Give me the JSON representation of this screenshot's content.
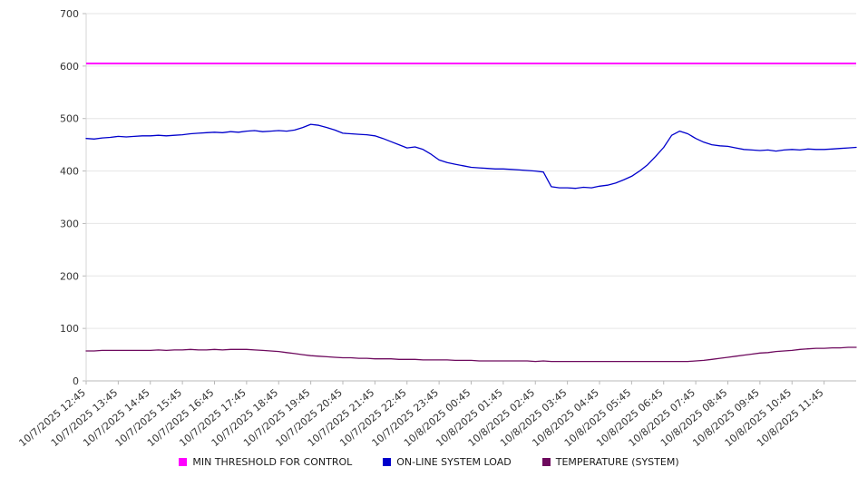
{
  "chart_data": {
    "type": "line",
    "title": "",
    "xlabel": "",
    "ylabel": "",
    "ylim": [
      0,
      700
    ],
    "yticks": [
      0,
      100,
      200,
      300,
      400,
      500,
      600,
      700
    ],
    "grid": true,
    "legend_position": "bottom",
    "background_color": "#ffffff",
    "gridline_color": "#e6e6e6",
    "axis_color": "#b8b8b8",
    "points_per_label": 4,
    "x_labels": [
      "10/7/2025 12:45",
      "10/7/2025 13:45",
      "10/7/2025 14:45",
      "10/7/2025 15:45",
      "10/7/2025 16:45",
      "10/7/2025 17:45",
      "10/7/2025 18:45",
      "10/7/2025 19:45",
      "10/7/2025 20:45",
      "10/7/2025 21:45",
      "10/7/2025 22:45",
      "10/7/2025 23:45",
      "10/8/2025 00:45",
      "10/8/2025 01:45",
      "10/8/2025 02:45",
      "10/8/2025 03:45",
      "10/8/2025 04:45",
      "10/8/2025 05:45",
      "10/8/2025 06:45",
      "10/8/2025 07:45",
      "10/8/2025 08:45",
      "10/8/2025 09:45",
      "10/8/2025 10:45",
      "10/8/2025 11:45"
    ],
    "series": [
      {
        "name": "MIN THRESHOLD FOR CONTROL",
        "color": "#ff00ff",
        "constant": 605
      },
      {
        "name": "ON-LINE SYSTEM LOAD",
        "color": "#0000cc",
        "values": [
          462,
          461,
          463,
          464,
          466,
          465,
          466,
          467,
          467,
          468,
          467,
          468,
          469,
          471,
          472,
          473,
          474,
          473,
          475,
          474,
          476,
          477,
          475,
          476,
          477,
          476,
          478,
          483,
          489,
          487,
          483,
          478,
          472,
          471,
          470,
          469,
          467,
          462,
          456,
          450,
          444,
          446,
          441,
          432,
          421,
          416,
          413,
          410,
          407,
          406,
          405,
          404,
          404,
          403,
          402,
          401,
          400,
          398,
          370,
          368,
          368,
          367,
          369,
          368,
          371,
          373,
          377,
          383,
          390,
          400,
          412,
          428,
          445,
          468,
          476,
          471,
          462,
          455,
          450,
          448,
          447,
          444,
          441,
          440,
          439,
          440,
          438,
          440,
          441,
          440,
          442,
          441,
          441,
          442,
          443,
          444,
          445
        ]
      },
      {
        "name": "TEMPERATURE (SYSTEM)",
        "color": "#6e0a5e",
        "values": [
          57,
          57,
          58,
          58,
          58,
          58,
          58,
          58,
          58,
          59,
          58,
          59,
          59,
          60,
          59,
          59,
          60,
          59,
          60,
          60,
          60,
          59,
          58,
          57,
          56,
          54,
          52,
          50,
          48,
          47,
          46,
          45,
          44,
          44,
          43,
          43,
          42,
          42,
          42,
          41,
          41,
          41,
          40,
          40,
          40,
          40,
          39,
          39,
          39,
          38,
          38,
          38,
          38,
          38,
          38,
          38,
          37,
          38,
          37,
          37,
          37,
          37,
          37,
          37,
          37,
          37,
          37,
          37,
          37,
          37,
          37,
          37,
          37,
          37,
          37,
          37,
          38,
          39,
          41,
          43,
          45,
          47,
          49,
          51,
          53,
          54,
          56,
          57,
          58,
          60,
          61,
          62,
          62,
          63,
          63,
          64,
          64
        ]
      }
    ]
  }
}
